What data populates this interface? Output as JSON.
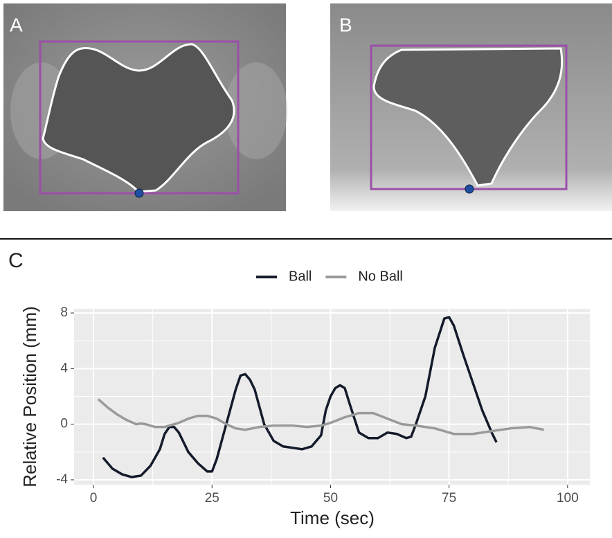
{
  "panels": {
    "a_label": "A",
    "b_label": "B",
    "c_label": "C"
  },
  "chart_data": {
    "type": "line",
    "x_label": "Time (sec)",
    "y_label": "Relative Position (mm)",
    "xlim": [
      -4.1,
      104.7
    ],
    "xticks": [
      0,
      25,
      50,
      75,
      100
    ],
    "ylim": [
      -4.35,
      8.3
    ],
    "yticks": [
      -4,
      0,
      4,
      8
    ],
    "x_minor_grid": [
      12.5,
      37.5,
      62.5,
      87.5
    ],
    "y_minor_grid": [
      -2,
      2,
      6
    ],
    "grid": true,
    "legend": "top",
    "series": [
      {
        "name": "Ball",
        "color": "#141b2b",
        "x": [
          2,
          4,
          6,
          8,
          10,
          12,
          14,
          15,
          16,
          17,
          18,
          20,
          22,
          24,
          25,
          26,
          28,
          30,
          31,
          32,
          33,
          34,
          36,
          38,
          40,
          42,
          44,
          46,
          48,
          49,
          50,
          51,
          52,
          53,
          54,
          56,
          58,
          60,
          62,
          64,
          66,
          67,
          68,
          70,
          72,
          74,
          75,
          76,
          78,
          80,
          82,
          84,
          85
        ],
        "values": [
          -2.4,
          -3.2,
          -3.6,
          -3.8,
          -3.7,
          -3,
          -1.8,
          -0.7,
          -0.2,
          -0.2,
          -0.6,
          -2,
          -2.8,
          -3.4,
          -3.4,
          -2.5,
          0,
          2.5,
          3.5,
          3.6,
          3.2,
          2.5,
          0,
          -1.2,
          -1.6,
          -1.7,
          -1.8,
          -1.6,
          -0.8,
          1,
          2,
          2.6,
          2.8,
          2.6,
          1.5,
          -0.6,
          -1,
          -1,
          -0.6,
          -0.7,
          -1,
          -0.9,
          0,
          2,
          5.5,
          7.6,
          7.7,
          7.1,
          5,
          3,
          1,
          -0.6,
          -1.3
        ]
      },
      {
        "name": "No Ball",
        "color": "#9a9a9a",
        "x": [
          1,
          3,
          5,
          7,
          9,
          10,
          11,
          13,
          15,
          18,
          20,
          22,
          24,
          26,
          28,
          30,
          32,
          35,
          38,
          42,
          45,
          48,
          50,
          53,
          56,
          59,
          62,
          65,
          68,
          72,
          76,
          80,
          84,
          88,
          92,
          95
        ],
        "values": [
          1.8,
          1.2,
          0.7,
          0.3,
          0,
          0.05,
          0,
          -0.2,
          -0.2,
          0.1,
          0.4,
          0.6,
          0.6,
          0.4,
          0,
          -0.3,
          -0.4,
          -0.2,
          -0.1,
          -0.1,
          -0.2,
          -0.1,
          0.1,
          0.5,
          0.8,
          0.8,
          0.4,
          0,
          -0.1,
          -0.3,
          -0.7,
          -0.7,
          -0.5,
          -0.3,
          -0.2,
          -0.4
        ]
      }
    ]
  }
}
